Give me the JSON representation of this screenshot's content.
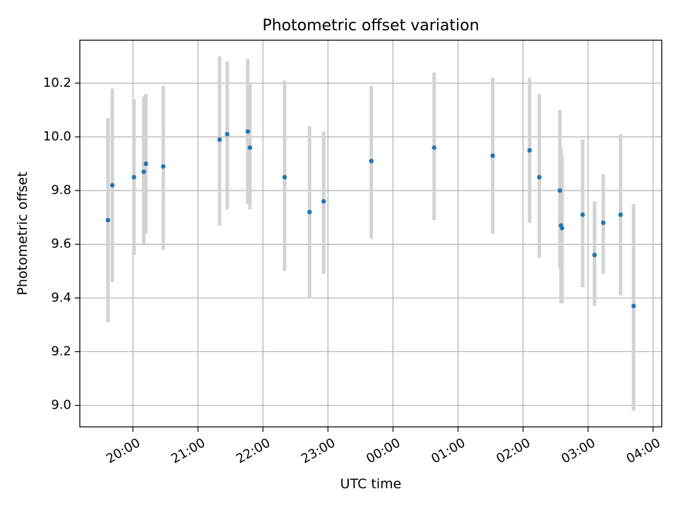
{
  "chart_data": {
    "type": "scatter",
    "title": "Photometric offset variation",
    "xlabel": "UTC time",
    "ylabel": "Photometric offset",
    "x_unit": "hours (UTC, relative to 00:00; negative = previous evening)",
    "xlim": [
      "19:11",
      "04:08"
    ],
    "ylim": [
      8.92,
      10.36
    ],
    "x_ticks": [
      "20:00",
      "21:00",
      "22:00",
      "23:00",
      "00:00",
      "01:00",
      "02:00",
      "03:00",
      "04:00"
    ],
    "y_ticks": [
      "9.0",
      "9.2",
      "9.4",
      "9.6",
      "9.8",
      "10.0",
      "10.2"
    ],
    "grid": true,
    "marker_color": "#1f77b4",
    "errorbar_color": "#d3d3d3",
    "points": [
      {
        "x": "19:37",
        "y": 9.69,
        "err_low": 9.31,
        "err_high": 10.07
      },
      {
        "x": "19:41",
        "y": 9.82,
        "err_low": 9.46,
        "err_high": 10.18
      },
      {
        "x": "20:01",
        "y": 9.85,
        "err_low": 9.56,
        "err_high": 10.14
      },
      {
        "x": "20:10",
        "y": 9.87,
        "err_low": 9.6,
        "err_high": 10.15
      },
      {
        "x": "20:12",
        "y": 9.9,
        "err_low": 9.64,
        "err_high": 10.16
      },
      {
        "x": "20:28",
        "y": 9.89,
        "err_low": 9.58,
        "err_high": 10.19
      },
      {
        "x": "21:20",
        "y": 9.99,
        "err_low": 9.67,
        "err_high": 10.3
      },
      {
        "x": "21:27",
        "y": 10.01,
        "err_low": 9.73,
        "err_high": 10.28
      },
      {
        "x": "21:46",
        "y": 10.02,
        "err_low": 9.75,
        "err_high": 10.29
      },
      {
        "x": "21:48",
        "y": 9.96,
        "err_low": 9.73,
        "err_high": 10.2
      },
      {
        "x": "22:20",
        "y": 9.85,
        "err_low": 9.5,
        "err_high": 10.21
      },
      {
        "x": "22:43",
        "y": 9.72,
        "err_low": 9.4,
        "err_high": 10.04
      },
      {
        "x": "22:56",
        "y": 9.76,
        "err_low": 9.49,
        "err_high": 10.02
      },
      {
        "x": "23:40",
        "y": 9.91,
        "err_low": 9.62,
        "err_high": 10.19
      },
      {
        "x": "00:38",
        "y": 9.96,
        "err_low": 9.69,
        "err_high": 10.24
      },
      {
        "x": "01:32",
        "y": 9.93,
        "err_low": 9.64,
        "err_high": 10.22
      },
      {
        "x": "02:06",
        "y": 9.95,
        "err_low": 9.68,
        "err_high": 10.22
      },
      {
        "x": "02:15",
        "y": 9.85,
        "err_low": 9.55,
        "err_high": 10.16
      },
      {
        "x": "02:34",
        "y": 9.8,
        "err_low": 9.51,
        "err_high": 10.1
      },
      {
        "x": "02:35",
        "y": 9.67,
        "err_low": 9.38,
        "err_high": 9.96
      },
      {
        "x": "02:36",
        "y": 9.66,
        "err_low": 9.38,
        "err_high": 9.93
      },
      {
        "x": "02:55",
        "y": 9.71,
        "err_low": 9.44,
        "err_high": 9.99
      },
      {
        "x": "03:06",
        "y": 9.56,
        "err_low": 9.37,
        "err_high": 9.76
      },
      {
        "x": "03:14",
        "y": 9.68,
        "err_low": 9.49,
        "err_high": 9.86
      },
      {
        "x": "03:30",
        "y": 9.71,
        "err_low": 9.41,
        "err_high": 10.01
      },
      {
        "x": "03:42",
        "y": 9.37,
        "err_low": 8.98,
        "err_high": 9.75
      }
    ]
  }
}
